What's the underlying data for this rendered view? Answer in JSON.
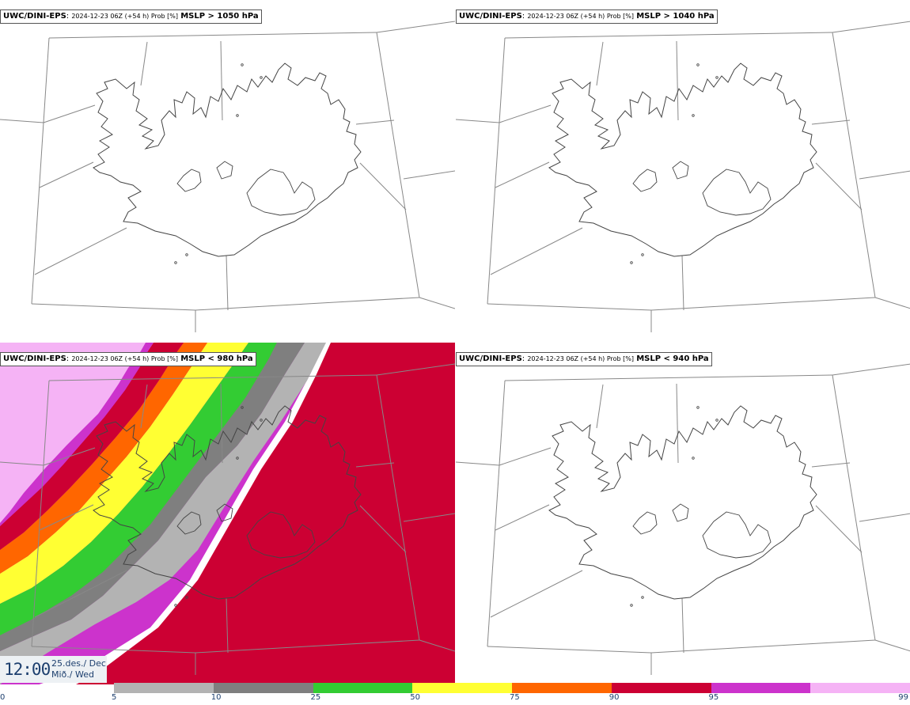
{
  "panels": [
    {
      "model": "UWC/DINI-EPS",
      "meta": "2024-12-23 06Z (+54 h) Prob [%]",
      "condition": "MSLP > 1050 hPa",
      "shaded": false
    },
    {
      "model": "UWC/DINI-EPS",
      "meta": "2024-12-23 06Z (+54 h) Prob [%]",
      "condition": "MSLP > 1040 hPa",
      "shaded": false
    },
    {
      "model": "UWC/DINI-EPS",
      "meta": "2024-12-23 06Z (+54 h) Prob [%]",
      "condition": "MSLP < 980 hPa",
      "shaded": true
    },
    {
      "model": "UWC/DINI-EPS",
      "meta": "2024-12-23 06Z (+54 h) Prob [%]",
      "condition": "MSLP < 940 hPa",
      "shaded": false
    }
  ],
  "valid_time": {
    "time": "12:00",
    "date_line1": "25.des./ Dec",
    "date_line2": "Mið./ Wed"
  },
  "legend": {
    "ticks": [
      "0",
      "5",
      "10",
      "25",
      "50",
      "75",
      "90",
      "95",
      "99"
    ],
    "colors": [
      "#b3b3b3",
      "#7f7f7f",
      "#33cc33",
      "#ffff33",
      "#ff6600",
      "#cc0033",
      "#cc33cc",
      "#f5b3f5"
    ]
  },
  "colors": {
    "coast": "#444444",
    "grid": "#888888"
  }
}
